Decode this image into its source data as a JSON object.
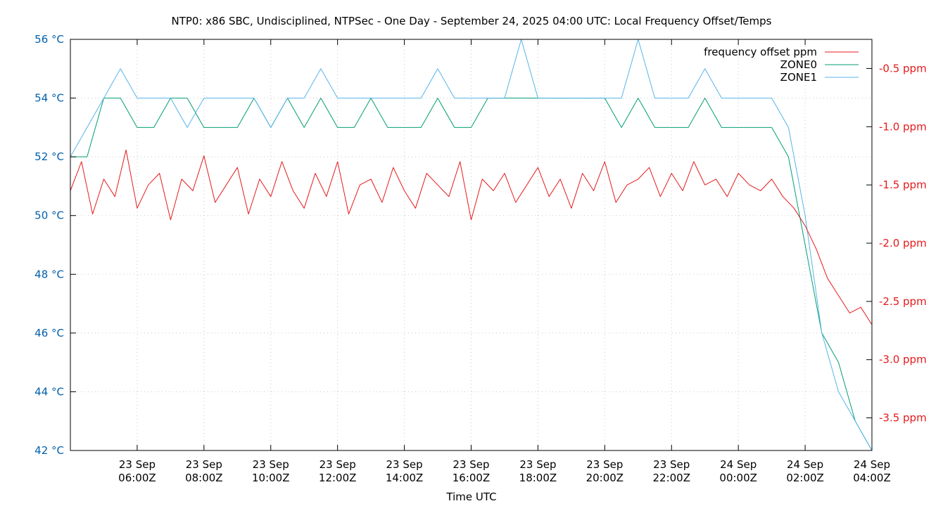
{
  "chart_data": {
    "type": "line",
    "title": "NTP0: x86 SBC, Undisciplined, NTPSec - One Day - September 24, 2025 04:00 UTC: Local Frequency Offset/Temps",
    "xlabel": "Time UTC",
    "ylabel": "",
    "y2label": "",
    "x_range": [
      "2025-09-23T04:00Z",
      "2025-09-24T04:00Z"
    ],
    "x_ticks": [
      {
        "t": "2025-09-23T06:00Z",
        "label": [
          "23 Sep",
          "06:00Z"
        ]
      },
      {
        "t": "2025-09-23T08:00Z",
        "label": [
          "23 Sep",
          "08:00Z"
        ]
      },
      {
        "t": "2025-09-23T10:00Z",
        "label": [
          "23 Sep",
          "10:00Z"
        ]
      },
      {
        "t": "2025-09-23T12:00Z",
        "label": [
          "23 Sep",
          "12:00Z"
        ]
      },
      {
        "t": "2025-09-23T14:00Z",
        "label": [
          "23 Sep",
          "14:00Z"
        ]
      },
      {
        "t": "2025-09-23T16:00Z",
        "label": [
          "23 Sep",
          "16:00Z"
        ]
      },
      {
        "t": "2025-09-23T18:00Z",
        "label": [
          "23 Sep",
          "18:00Z"
        ]
      },
      {
        "t": "2025-09-23T20:00Z",
        "label": [
          "23 Sep",
          "20:00Z"
        ]
      },
      {
        "t": "2025-09-23T22:00Z",
        "label": [
          "23 Sep",
          "22:00Z"
        ]
      },
      {
        "t": "2025-09-24T00:00Z",
        "label": [
          "24 Sep",
          "00:00Z"
        ]
      },
      {
        "t": "2025-09-24T02:00Z",
        "label": [
          "24 Sep",
          "02:00Z"
        ]
      },
      {
        "t": "2025-09-24T04:00Z",
        "label": [
          "24 Sep",
          "04:00Z"
        ]
      }
    ],
    "y_range": [
      42,
      56
    ],
    "y_ticks": [
      {
        "v": 42,
        "label": "42 °C"
      },
      {
        "v": 44,
        "label": "44 °C"
      },
      {
        "v": 46,
        "label": "46 °C"
      },
      {
        "v": 48,
        "label": "48 °C"
      },
      {
        "v": 50,
        "label": "50 °C"
      },
      {
        "v": 52,
        "label": "52 °C"
      },
      {
        "v": 54,
        "label": "54 °C"
      },
      {
        "v": 56,
        "label": "56 °C"
      }
    ],
    "y2_range": [
      -3.78,
      -0.25
    ],
    "y2_ticks": [
      {
        "v": -0.5,
        "label": "-0.5 ppm"
      },
      {
        "v": -1.0,
        "label": "-1.0 ppm"
      },
      {
        "v": -1.5,
        "label": "-1.5 ppm"
      },
      {
        "v": -2.0,
        "label": "-2.0 ppm"
      },
      {
        "v": -2.5,
        "label": "-2.5 ppm"
      },
      {
        "v": -3.0,
        "label": "-3.0 ppm"
      },
      {
        "v": -3.5,
        "label": "-3.5 ppm"
      }
    ],
    "grid": true,
    "legend_position": "top-right",
    "colors": {
      "left_axis": "#0060ad",
      "right_axis": "#e41a1c",
      "frequency": "#e41a1c",
      "zone0": "#009e73",
      "zone1": "#56b4e9",
      "grid": "#c8c8c8"
    },
    "series": [
      {
        "name": "frequency offset ppm",
        "axis": "y2",
        "start": "2025-09-23T04:00Z",
        "step_minutes": 20,
        "values": [
          -1.55,
          -1.3,
          -1.75,
          -1.45,
          -1.6,
          -1.2,
          -1.7,
          -1.5,
          -1.4,
          -1.8,
          -1.45,
          -1.55,
          -1.25,
          -1.65,
          -1.5,
          -1.35,
          -1.75,
          -1.45,
          -1.6,
          -1.3,
          -1.55,
          -1.7,
          -1.4,
          -1.6,
          -1.3,
          -1.75,
          -1.5,
          -1.45,
          -1.65,
          -1.35,
          -1.55,
          -1.7,
          -1.4,
          -1.5,
          -1.6,
          -1.3,
          -1.8,
          -1.45,
          -1.55,
          -1.4,
          -1.65,
          -1.5,
          -1.35,
          -1.6,
          -1.45,
          -1.7,
          -1.4,
          -1.55,
          -1.3,
          -1.65,
          -1.5,
          -1.45,
          -1.35,
          -1.6,
          -1.4,
          -1.55,
          -1.3,
          -1.5,
          -1.45,
          -1.6,
          -1.4,
          -1.5,
          -1.55,
          -1.45,
          -1.6,
          -1.7,
          -1.85,
          -2.05,
          -2.3,
          -2.45,
          -2.6,
          -2.55,
          -2.7
        ]
      },
      {
        "name": "ZONE0",
        "axis": "y",
        "start": "2025-09-23T04:00Z",
        "step_minutes": 30,
        "values": [
          52,
          52,
          54,
          54,
          53,
          53,
          54,
          54,
          53,
          53,
          53,
          54,
          53,
          54,
          53,
          54,
          53,
          53,
          54,
          53,
          53,
          53,
          54,
          53,
          53,
          54,
          54,
          54,
          54,
          54,
          54,
          54,
          54,
          53,
          54,
          53,
          53,
          53,
          54,
          53,
          53,
          53,
          53,
          52,
          49,
          46,
          45,
          43,
          42
        ]
      },
      {
        "name": "ZONE1",
        "axis": "y",
        "start": "2025-09-23T04:00Z",
        "step_minutes": 30,
        "values": [
          52,
          53,
          54,
          55,
          54,
          54,
          54,
          53,
          54,
          54,
          54,
          54,
          53,
          54,
          54,
          55,
          54,
          54,
          54,
          54,
          54,
          54,
          55,
          54,
          54,
          54,
          54,
          56,
          54,
          54,
          54,
          54,
          54,
          54,
          56,
          54,
          54,
          54,
          55,
          54,
          54,
          54,
          54,
          53,
          50,
          46,
          44,
          43,
          42
        ]
      }
    ]
  }
}
